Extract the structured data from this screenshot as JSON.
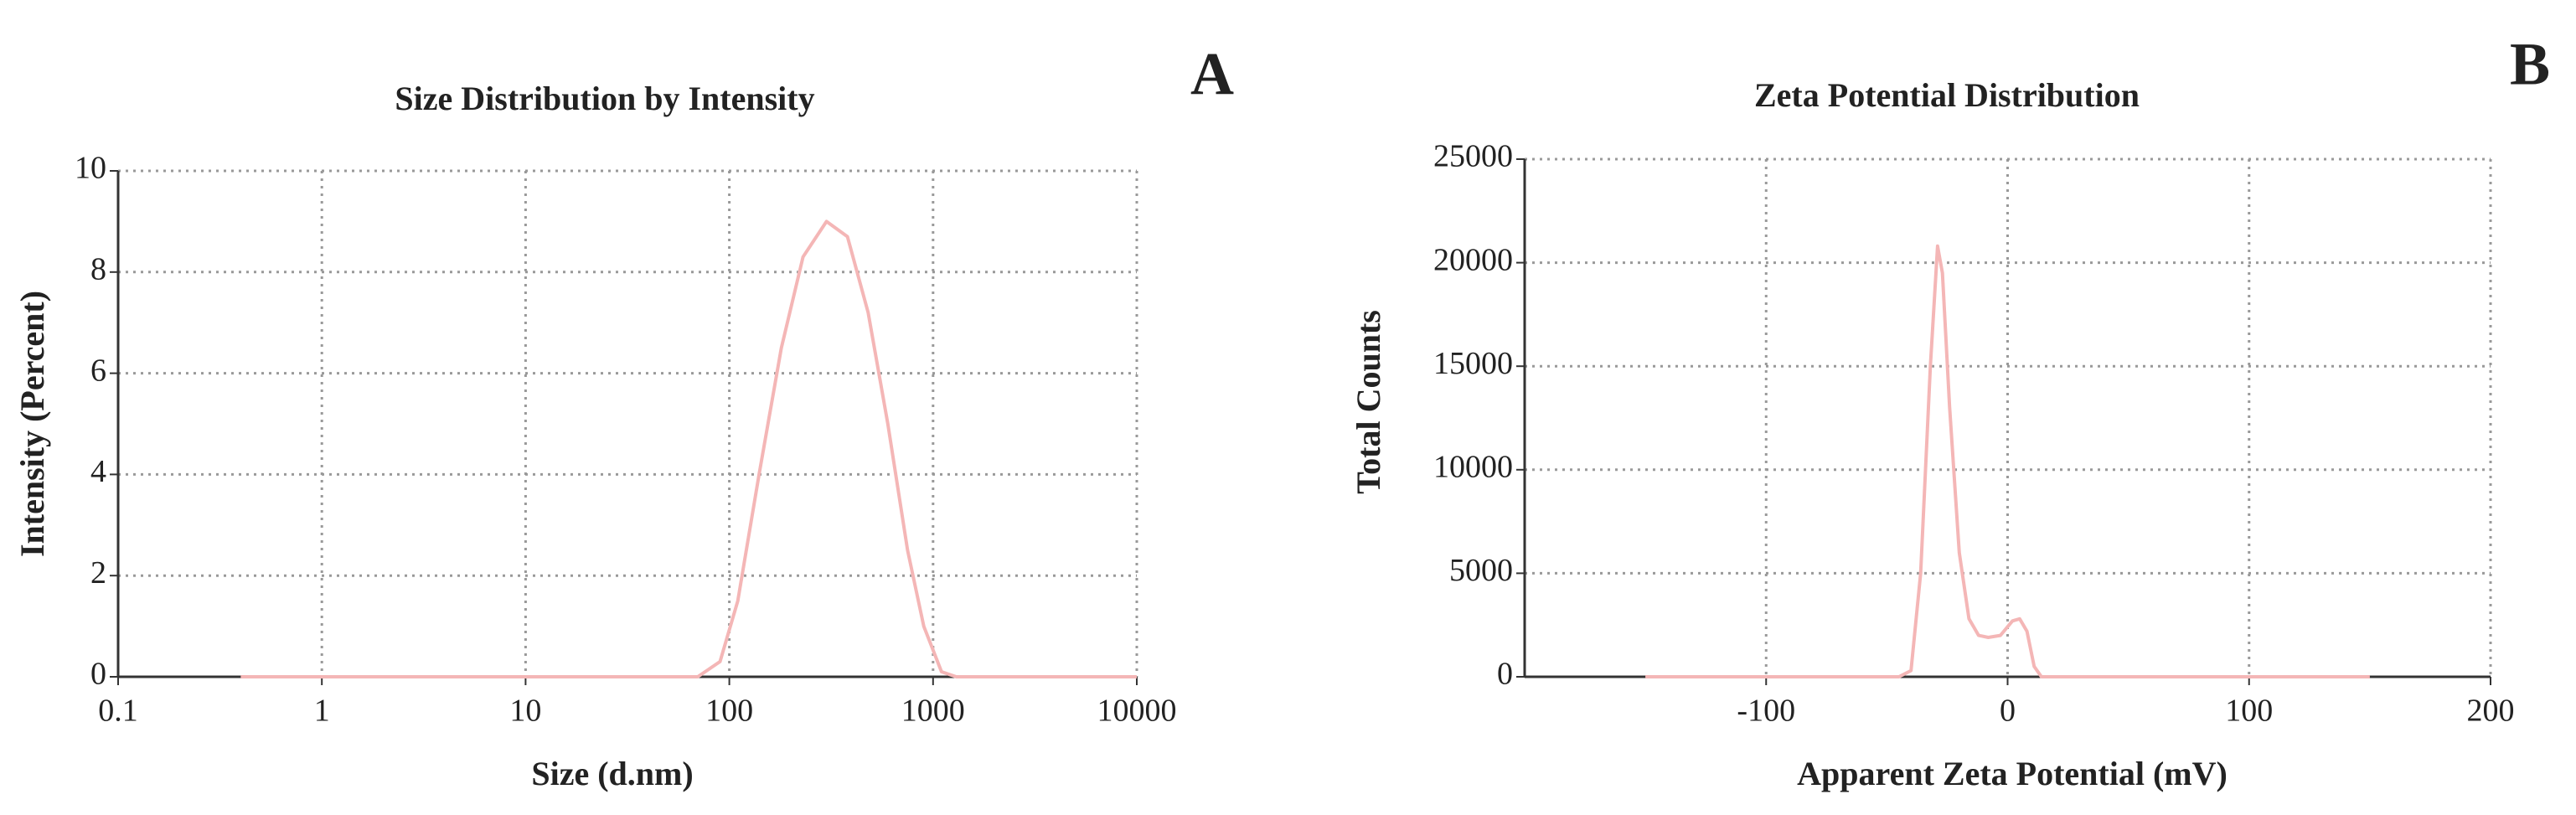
{
  "chart_data": [
    {
      "type": "line",
      "title": "Size Distribution by Intensity",
      "panel": "A",
      "x_label": "Size (d.nm)",
      "y_label": "Intensity (Percent)",
      "xscale": "log",
      "x": [
        0.4,
        10,
        70,
        90,
        110,
        140,
        180,
        230,
        300,
        380,
        480,
        600,
        750,
        900,
        1100,
        1300,
        10000
      ],
      "values": [
        0,
        0,
        0,
        0.3,
        1.5,
        4,
        6.5,
        8.3,
        9.0,
        8.7,
        7.2,
        5,
        2.5,
        1,
        0.1,
        0,
        0
      ],
      "color": "#f4b6b6",
      "grid": true,
      "xlim": [
        0.1,
        10000
      ],
      "xticks": [
        0.1,
        1,
        10,
        100,
        1000,
        10000
      ],
      "ylim": [
        0,
        10
      ],
      "yticks": [
        0,
        2,
        4,
        6,
        8,
        10
      ]
    },
    {
      "type": "line",
      "title": "Zeta Potential Distribution",
      "panel": "B",
      "x_label": "Apparent Zeta Potential (mV)",
      "y_label": "Total Counts",
      "xscale": "linear",
      "x": [
        -150,
        -45,
        -40,
        -36,
        -32,
        -29,
        -27,
        -24,
        -20,
        -16,
        -12,
        -8,
        -3,
        2,
        5,
        8,
        11,
        14,
        150
      ],
      "values": [
        0,
        0,
        300,
        5000,
        15000,
        20800,
        19500,
        13000,
        6000,
        2800,
        2000,
        1900,
        2000,
        2700,
        2800,
        2200,
        500,
        0,
        0
      ],
      "color": "#f4b6b6",
      "grid": true,
      "xlim": [
        -200,
        200
      ],
      "xticks": [
        -100,
        0,
        100,
        200
      ],
      "ylim": [
        0,
        25000
      ],
      "yticks": [
        0,
        5000,
        10000,
        15000,
        20000,
        25000
      ]
    }
  ]
}
